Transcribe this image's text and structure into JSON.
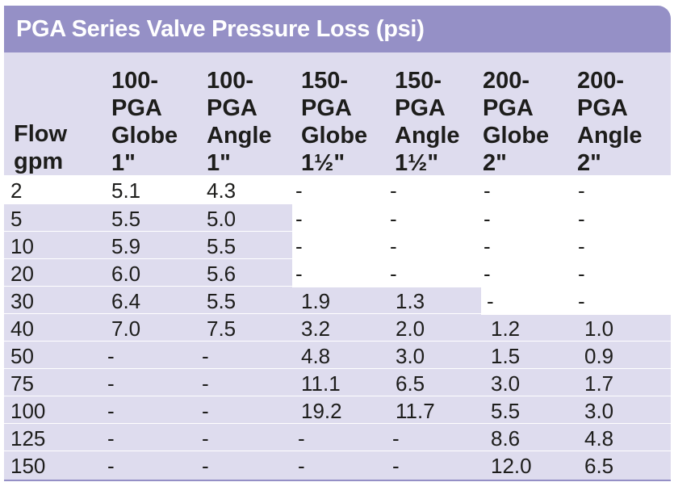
{
  "title": "PGA Series Valve Pressure Loss (psi)",
  "columns": [
    {
      "lines": [
        "Flow",
        "gpm"
      ]
    },
    {
      "lines": [
        "100-",
        "PGA",
        "Globe",
        "1\""
      ]
    },
    {
      "lines": [
        "100-",
        "PGA",
        "Angle",
        "1\""
      ]
    },
    {
      "lines": [
        "150-",
        "PGA",
        "Globe",
        "1½\""
      ]
    },
    {
      "lines": [
        "150-",
        "PGA",
        "Angle",
        "1½\""
      ]
    },
    {
      "lines": [
        "200-",
        "PGA",
        "Globe",
        "2\""
      ]
    },
    {
      "lines": [
        "200-",
        "PGA",
        "Angle",
        "2\""
      ]
    }
  ],
  "rows": [
    [
      "2",
      "5.1",
      "4.3",
      "-",
      "-",
      "-",
      "-"
    ],
    [
      "5",
      "5.5",
      "5.0",
      "-",
      "-",
      "-",
      "-"
    ],
    [
      "10",
      "5.9",
      "5.5",
      "-",
      "-",
      "-",
      "-"
    ],
    [
      "20",
      "6.0",
      "5.6",
      "-",
      "-",
      "-",
      "-"
    ],
    [
      "30",
      "6.4",
      "5.5",
      "1.9",
      "1.3",
      "-",
      "-"
    ],
    [
      "40",
      "7.0",
      "7.5",
      "3.2",
      "2.0",
      "1.2",
      "1.0"
    ],
    [
      "50",
      "-",
      "-",
      "4.8",
      "3.0",
      "1.5",
      "0.9"
    ],
    [
      "75",
      "-",
      "-",
      "11.1",
      "6.5",
      "3.0",
      "1.7"
    ],
    [
      "100",
      "-",
      "-",
      "19.2",
      "11.7",
      "5.5",
      "3.0"
    ],
    [
      "125",
      "-",
      "-",
      "-",
      "-",
      "8.6",
      "4.8"
    ],
    [
      "150",
      "-",
      "-",
      "-",
      "-",
      "12.0",
      "6.5"
    ]
  ],
  "colors": {
    "title_bar": "#9590c6",
    "shade": "#dedcee",
    "text": "#1d1d1b"
  }
}
